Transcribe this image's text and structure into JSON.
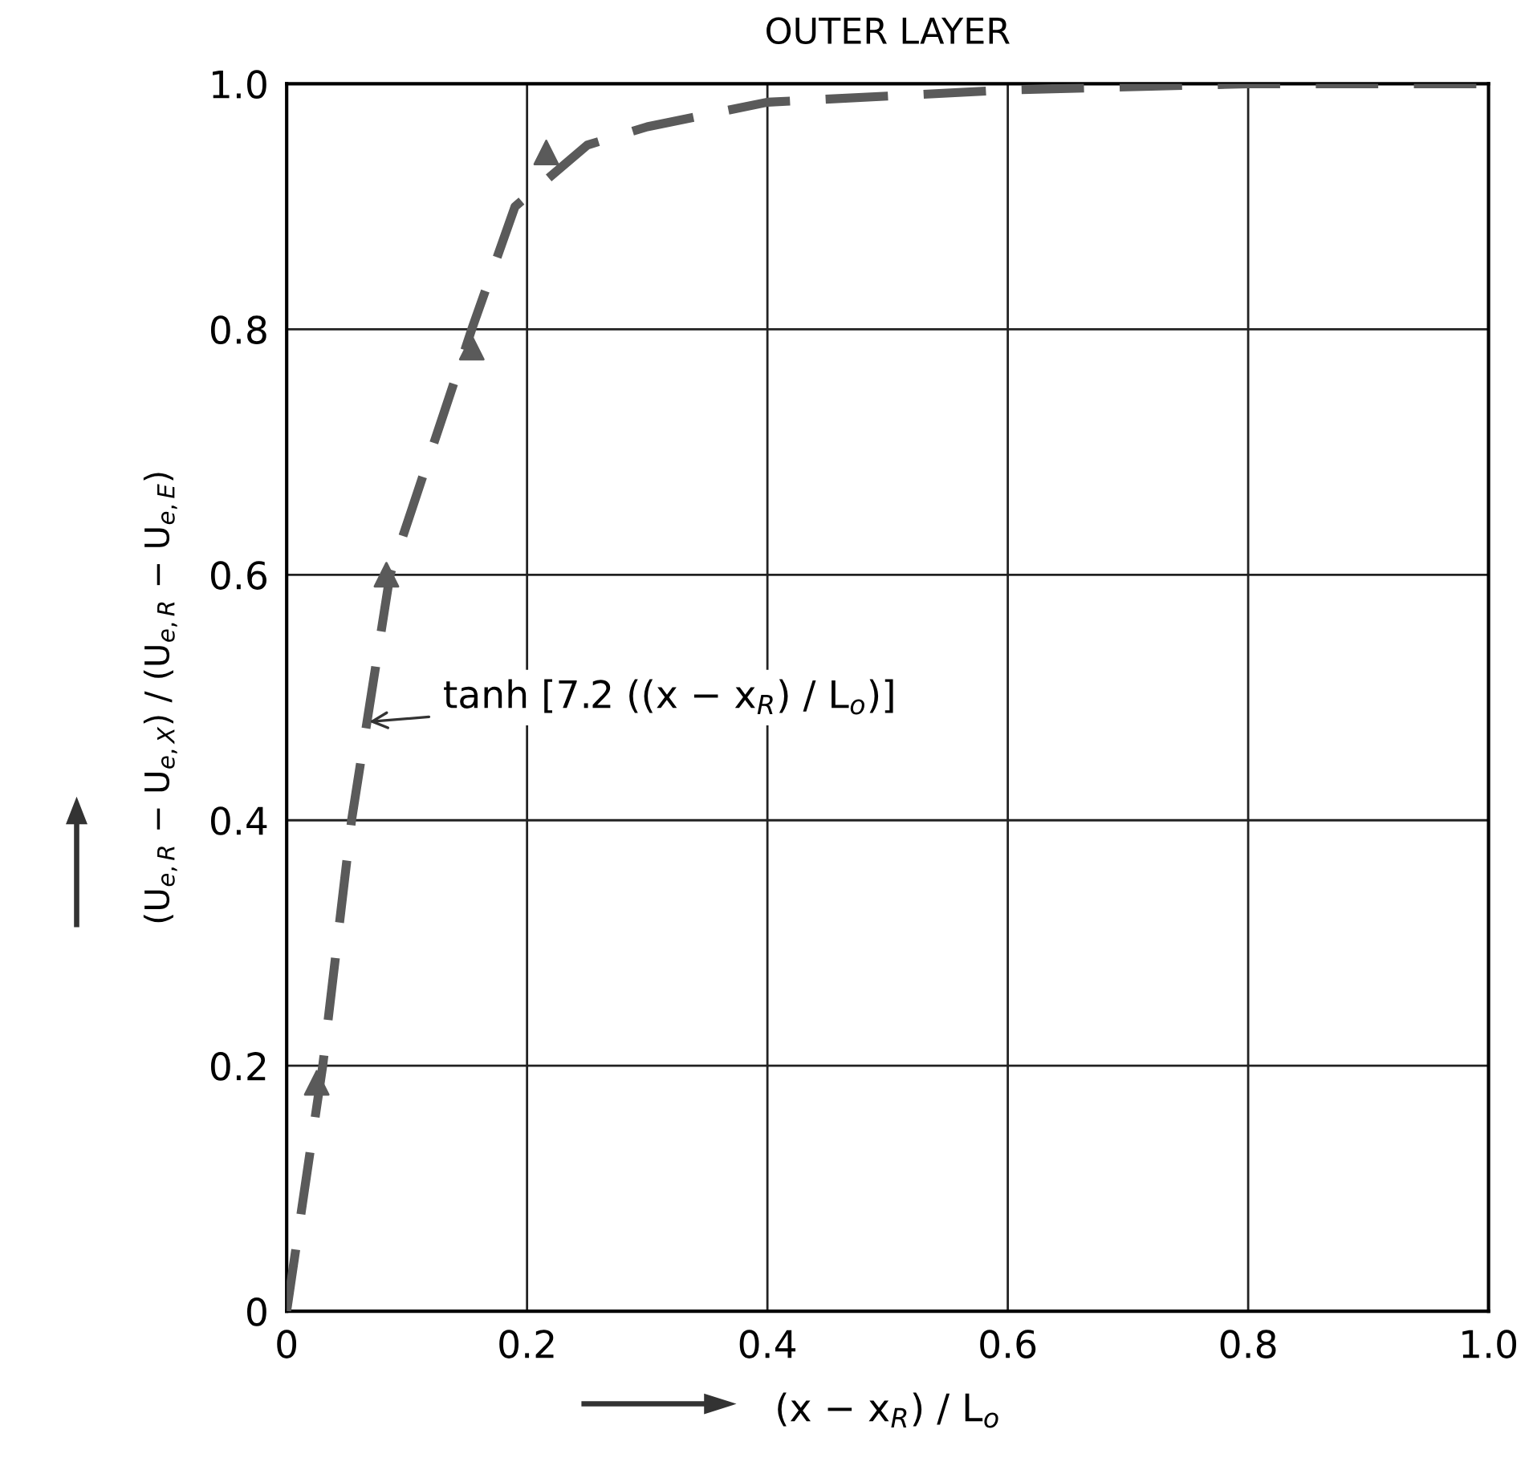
{
  "chart_data": {
    "type": "line",
    "title": "OUTER LAYER",
    "xlabel": "(x − x$_{R}$) / L$_{o}$",
    "ylabel": "(U$_{e,R}$ − U$_{e,X}$) / (U$_{e,R}$ − U$_{e,E}$)",
    "series": [
      {
        "color": "#5a5a5a",
        "line_style": "dashed",
        "marker": "none",
        "x": [
          0,
          0.03,
          0.054,
          0.07,
          0.086,
          0.12,
          0.154,
          0.19,
          0.25,
          0.3,
          0.4,
          0.5,
          0.6,
          0.8,
          1.0
        ],
        "values": [
          0,
          0.2,
          0.4,
          0.5,
          0.6,
          0.7,
          0.8,
          0.9,
          0.95,
          0.965,
          0.985,
          0.99,
          0.995,
          1.0,
          1.0
        ]
      },
      {
        "type": "scatter",
        "color": "#5a5a5a",
        "marker": "triangle",
        "x": [
          0.025,
          0.083,
          0.154,
          0.216
        ],
        "values": [
          0.186,
          0.6,
          0.785,
          0.944
        ]
      }
    ],
    "annotations": [
      {
        "text": "tanh [7.2 ((x − x$_{R}$) / L$_{o}$)]",
        "x": 0.065,
        "y": 0.48
      }
    ],
    "xlim": [
      0,
      1
    ],
    "ylim": [
      0,
      1
    ],
    "xticks": [
      0,
      0.2,
      0.4,
      0.6,
      0.8,
      {
        "value": 1,
        "label": "1.0"
      }
    ],
    "yticks": [
      0,
      0.2,
      0.4,
      0.6,
      0.8,
      {
        "value": 1,
        "label": "1.0"
      }
    ],
    "grid": true,
    "legend": false
  }
}
